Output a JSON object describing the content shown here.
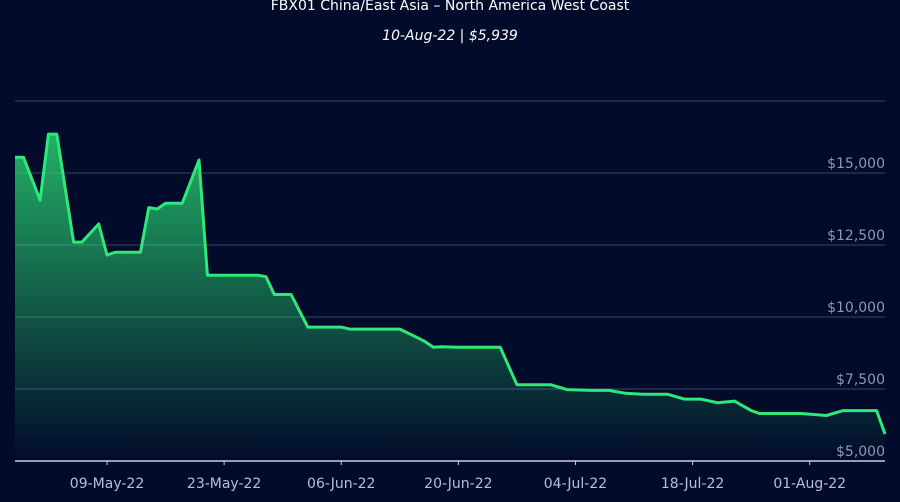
{
  "chart_data": {
    "type": "area",
    "title": "FBX01 China/East Asia – North America West Coast",
    "subtitle": "10-Aug-22 | $5,939",
    "x": [
      "2022-04-28",
      "2022-04-29",
      "2022-05-01",
      "2022-05-02",
      "2022-05-03",
      "2022-05-05",
      "2022-05-06",
      "2022-05-08",
      "2022-05-09",
      "2022-05-10",
      "2022-05-13",
      "2022-05-14",
      "2022-05-15",
      "2022-05-16",
      "2022-05-18",
      "2022-05-20",
      "2022-05-21",
      "2022-05-27",
      "2022-05-28",
      "2022-05-29",
      "2022-05-31",
      "2022-06-02",
      "2022-06-06",
      "2022-06-07",
      "2022-06-13",
      "2022-06-15",
      "2022-06-16",
      "2022-06-17",
      "2022-06-18",
      "2022-06-20",
      "2022-06-25",
      "2022-06-27",
      "2022-07-01",
      "2022-07-03",
      "2022-07-06",
      "2022-07-08",
      "2022-07-10",
      "2022-07-12",
      "2022-07-15",
      "2022-07-17",
      "2022-07-19",
      "2022-07-21",
      "2022-07-23",
      "2022-07-25",
      "2022-07-26",
      "2022-07-31",
      "2022-08-03",
      "2022-08-05",
      "2022-08-09",
      "2022-08-10"
    ],
    "series": [
      {
        "name": "FBX01",
        "color": "#2ee87a",
        "values": [
          15550,
          15550,
          14060,
          16350,
          16350,
          12600,
          12600,
          13230,
          12150,
          12250,
          12250,
          13800,
          13750,
          13950,
          13950,
          15450,
          11450,
          11450,
          11400,
          10780,
          10780,
          9650,
          9650,
          9580,
          9580,
          9300,
          9150,
          8950,
          8970,
          8950,
          8950,
          7650,
          7650,
          7480,
          7450,
          7450,
          7350,
          7320,
          7320,
          7150,
          7150,
          7020,
          7080,
          6750,
          6650,
          6650,
          6580,
          6750,
          6750,
          5939
        ]
      }
    ],
    "xlim": [
      "2022-04-28",
      "2022-08-10"
    ],
    "xticks": [
      {
        "value": "2022-05-09",
        "label": "09-May-22"
      },
      {
        "value": "2022-05-23",
        "label": "23-May-22"
      },
      {
        "value": "2022-06-06",
        "label": "06-Jun-22"
      },
      {
        "value": "2022-06-20",
        "label": "20-Jun-22"
      },
      {
        "value": "2022-07-04",
        "label": "04-Jul-22"
      },
      {
        "value": "2022-07-18",
        "label": "18-Jul-22"
      },
      {
        "value": "2022-08-01",
        "label": "01-Aug-22"
      }
    ],
    "ylim": [
      5000,
      17500
    ],
    "yticks": [
      {
        "value": 5000,
        "label": "$5,000"
      },
      {
        "value": 7500,
        "label": "$7,500"
      },
      {
        "value": 10000,
        "label": "$10,000"
      },
      {
        "value": 12500,
        "label": "$12,500"
      },
      {
        "value": 15000,
        "label": "$15,000"
      }
    ],
    "grid": true
  }
}
